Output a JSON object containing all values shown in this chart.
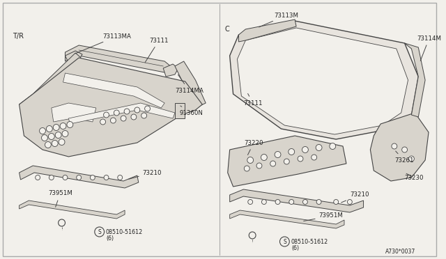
{
  "bg_color": "#f2f0eb",
  "border_color": "#999999",
  "line_color": "#444444",
  "fill_color": "#d8d4cc",
  "fill_light": "#e8e4de",
  "text_color": "#222222",
  "diagram_code": "A730*0037",
  "left_label": "T/R",
  "right_label": "C",
  "fs_label": 7.0,
  "fs_part": 6.2,
  "fs_code": 5.5
}
